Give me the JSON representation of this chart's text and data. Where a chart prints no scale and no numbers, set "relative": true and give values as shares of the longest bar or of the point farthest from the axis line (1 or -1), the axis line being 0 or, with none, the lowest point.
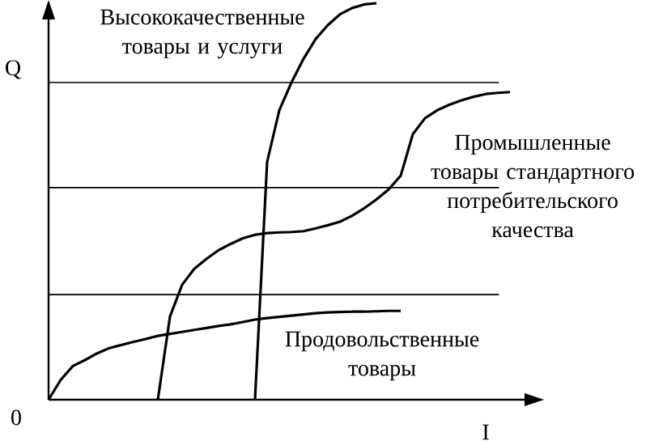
{
  "chart_data": {
    "type": "line",
    "relative": true,
    "xlabel": "I",
    "ylabel": "Q",
    "annotations": [
      "0"
    ],
    "marker": "none",
    "line_style": "solid",
    "categories": [
      null,
      null,
      null,
      null,
      null,
      null,
      null,
      null,
      null,
      null,
      null,
      null,
      null,
      null,
      null,
      null,
      null,
      null,
      null,
      null,
      null,
      null,
      null,
      null,
      null,
      null,
      null,
      null,
      null,
      null,
      null,
      null,
      null,
      null,
      null,
      null,
      null,
      null,
      null,
      null,
      null
    ],
    "ref_lines": [
      {
        "axis": "y",
        "value": 0.8,
        "color": "#000000"
      },
      {
        "axis": "y",
        "value": 0.535,
        "color": "#000000"
      },
      {
        "axis": "y",
        "value": 0.265,
        "color": "#000000"
      }
    ],
    "series": [
      {
        "name": "Продовольственные товары",
        "color": "#000000",
        "values": [
          0.0,
          0.05,
          0.085,
          0.1,
          0.117,
          0.13,
          0.138,
          0.146,
          0.153,
          0.161,
          0.166,
          0.171,
          0.176,
          0.181,
          0.186,
          0.19,
          0.196,
          0.202,
          0.206,
          0.209,
          0.212,
          0.215,
          0.218,
          0.22,
          0.221,
          0.222,
          0.222,
          0.223,
          0.224,
          0.224,
          null,
          null,
          null,
          null,
          null,
          null,
          null,
          null,
          null,
          null,
          null
        ]
      },
      {
        "name": "Промышленные товары стандартного потребительского качества",
        "color": "#000000",
        "values": [
          null,
          null,
          null,
          null,
          null,
          null,
          null,
          null,
          null,
          0.0,
          0.21,
          0.29,
          0.33,
          0.355,
          0.377,
          0.393,
          0.407,
          0.416,
          0.42,
          0.422,
          0.423,
          0.425,
          0.432,
          0.44,
          0.449,
          0.464,
          0.483,
          0.505,
          0.53,
          0.565,
          0.67,
          0.71,
          0.73,
          0.744,
          0.755,
          0.764,
          0.771,
          0.774,
          0.776,
          null,
          null
        ]
      },
      {
        "name": "Высококачественные товары и услуги",
        "color": "#000000",
        "values": [
          null,
          null,
          null,
          null,
          null,
          null,
          null,
          null,
          null,
          null,
          null,
          null,
          null,
          null,
          null,
          null,
          null,
          0.0,
          0.6,
          0.73,
          0.8,
          0.86,
          0.91,
          0.945,
          0.972,
          0.988,
          0.997,
          1.0,
          null,
          null,
          null,
          null,
          null,
          null,
          null,
          null,
          null,
          null,
          null,
          null,
          null
        ]
      }
    ]
  }
}
